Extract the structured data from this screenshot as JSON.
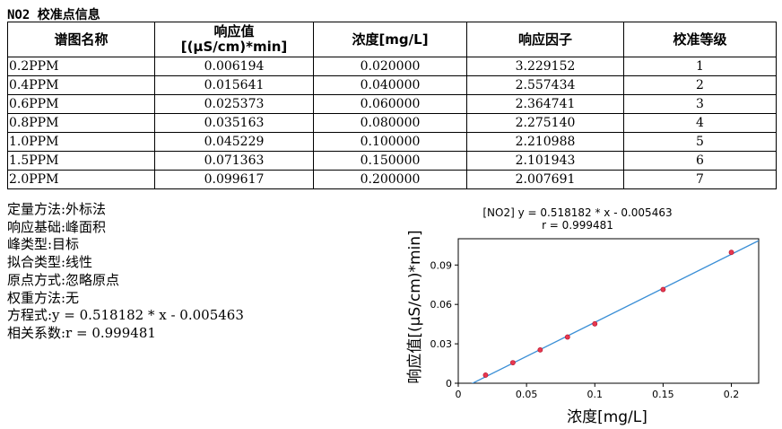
{
  "title": "NO2 校准点信息",
  "table": {
    "headers": [
      "谱图名称",
      "响应值",
      "[(μS/cm)*min]",
      "浓度[mg/L]",
      "响应因子",
      "校准等级"
    ],
    "rows": [
      [
        "0.2PPM",
        "0.006194",
        "0.020000",
        "3.229152",
        "1"
      ],
      [
        "0.4PPM",
        "0.015641",
        "0.040000",
        "2.557434",
        "2"
      ],
      [
        "0.6PPM",
        "0.025373",
        "0.060000",
        "2.364741",
        "3"
      ],
      [
        "0.8PPM",
        "0.035163",
        "0.080000",
        "2.275140",
        "4"
      ],
      [
        "1.0PPM",
        "0.045229",
        "0.100000",
        "2.210988",
        "5"
      ],
      [
        "1.5PPM",
        "0.071363",
        "0.150000",
        "2.101943",
        "6"
      ],
      [
        "2.0PPM",
        "0.099617",
        "0.200000",
        "2.007691",
        "7"
      ]
    ]
  },
  "info": [
    "定量方法:外标法",
    "响应基础:峰面积",
    "峰类型:目标",
    "拟合类型:线性",
    "原点方式:忽略原点",
    "权重方法:无",
    "方程式:y = 0.518182 * x - 0.005463",
    "相关系数:r = 0.999481"
  ],
  "chart_data": {
    "type": "scatter",
    "title": "[NO2] y = 0.518182 * x - 0.005463",
    "subtitle": "r = 0.999481",
    "xlabel": "浓度[mg/L]",
    "ylabel": "响应值[(μS/cm)*min]",
    "xlim": [
      0,
      0.22
    ],
    "ylim": [
      0,
      0.11
    ],
    "xticks": [
      0,
      0.05,
      0.1,
      0.15,
      0.2
    ],
    "xtick_labels": [
      "0",
      "0.05",
      "0.1",
      "0.15",
      "0.2"
    ],
    "yticks": [
      0,
      0.03,
      0.06,
      0.09
    ],
    "ytick_labels": [
      "0",
      "0.03",
      "0.06",
      "0.09"
    ],
    "x": [
      0.02,
      0.04,
      0.06,
      0.08,
      0.1,
      0.15,
      0.2
    ],
    "y": [
      0.006194,
      0.015641,
      0.025373,
      0.035163,
      0.045229,
      0.071363,
      0.099617
    ],
    "fit": {
      "slope": 0.518182,
      "intercept": -0.005463
    },
    "grid": false,
    "colors": {
      "line": "#3a8fd6",
      "marker": "#e8384f"
    }
  }
}
